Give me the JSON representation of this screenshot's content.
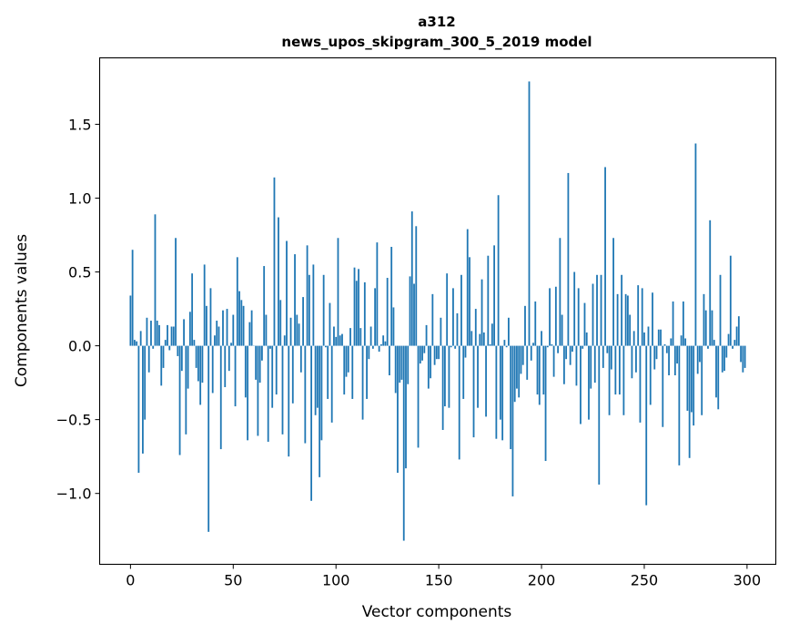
{
  "chart_data": {
    "type": "bar",
    "title": "a312",
    "subtitle": "news_upos_skipgram_300_5_2019 model",
    "xlabel": "Vector components",
    "ylabel": "Components values",
    "xlim": [
      -15,
      314
    ],
    "ylim": [
      -1.48,
      1.95
    ],
    "grid": false,
    "bar_color": "#1f77b4",
    "xticks": [
      0,
      50,
      100,
      150,
      200,
      250,
      300
    ],
    "xtick_labels": [
      "0",
      "50",
      "100",
      "150",
      "200",
      "250",
      "300"
    ],
    "yticks": [
      -1.0,
      -0.5,
      0.0,
      0.5,
      1.0,
      1.5
    ],
    "ytick_labels": [
      "−1.0",
      "−0.5",
      "0.0",
      "0.5",
      "1.0",
      "1.5"
    ],
    "values": [
      0.34,
      0.65,
      0.04,
      0.03,
      -0.86,
      0.1,
      -0.73,
      -0.5,
      0.19,
      -0.18,
      0.17,
      -0.02,
      0.89,
      0.17,
      0.14,
      -0.27,
      -0.15,
      0.04,
      0.14,
      -0.03,
      0.13,
      0.13,
      0.73,
      -0.07,
      -0.74,
      -0.17,
      0.18,
      -0.6,
      -0.29,
      0.23,
      0.49,
      0.04,
      -0.15,
      -0.24,
      -0.4,
      -0.25,
      0.55,
      0.27,
      -1.26,
      0.39,
      -0.32,
      0.07,
      0.17,
      0.13,
      -0.7,
      0.24,
      -0.28,
      0.25,
      -0.17,
      0.02,
      0.21,
      -0.41,
      0.6,
      0.37,
      0.31,
      0.27,
      -0.35,
      -0.64,
      0.16,
      0.24,
      0.0,
      -0.23,
      -0.61,
      -0.25,
      -0.1,
      0.54,
      0.21,
      -0.65,
      -0.02,
      -0.42,
      1.14,
      -0.33,
      0.87,
      0.31,
      -0.6,
      0.07,
      0.71,
      -0.75,
      0.19,
      -0.39,
      0.62,
      0.21,
      0.15,
      -0.18,
      0.33,
      -0.66,
      0.68,
      0.48,
      -1.05,
      0.55,
      -0.47,
      -0.42,
      -0.89,
      -0.64,
      0.48,
      -0.01,
      -0.36,
      0.29,
      -0.52,
      0.13,
      0.06,
      0.73,
      0.07,
      0.08,
      -0.33,
      -0.21,
      -0.18,
      0.12,
      -0.36,
      0.53,
      0.44,
      0.52,
      0.12,
      -0.5,
      0.43,
      -0.36,
      -0.09,
      0.13,
      -0.02,
      0.39,
      0.7,
      -0.04,
      0.01,
      0.07,
      0.03,
      0.46,
      -0.2,
      0.67,
      0.26,
      -0.32,
      -0.86,
      -0.25,
      -0.23,
      -1.32,
      -0.83,
      -0.26,
      0.47,
      0.91,
      0.42,
      0.81,
      -0.69,
      -0.12,
      -0.1,
      -0.05,
      0.14,
      -0.29,
      -0.22,
      0.35,
      -0.13,
      -0.09,
      -0.09,
      0.19,
      -0.57,
      -0.41,
      0.49,
      -0.42,
      -0.01,
      0.39,
      -0.02,
      0.22,
      -0.77,
      0.48,
      -0.36,
      -0.08,
      0.79,
      0.6,
      0.1,
      -0.62,
      0.25,
      -0.42,
      0.08,
      0.45,
      0.09,
      -0.48,
      0.61,
      0.01,
      0.15,
      0.68,
      -0.63,
      1.02,
      -0.5,
      -0.64,
      0.04,
      -0.01,
      0.19,
      -0.7,
      -1.02,
      -0.38,
      -0.29,
      -0.35,
      -0.19,
      -0.13,
      0.27,
      -0.23,
      1.79,
      -0.1,
      0.02,
      0.3,
      -0.33,
      -0.4,
      0.1,
      -0.33,
      -0.78,
      -0.01,
      0.39,
      0.01,
      -0.21,
      0.4,
      -0.05,
      0.73,
      0.21,
      -0.26,
      -0.09,
      1.17,
      -0.13,
      -0.04,
      0.5,
      -0.27,
      0.39,
      -0.53,
      -0.02,
      0.29,
      0.09,
      -0.5,
      -0.29,
      0.42,
      -0.25,
      0.48,
      -0.94,
      0.48,
      -0.15,
      1.21,
      -0.05,
      -0.47,
      -0.16,
      0.73,
      -0.33,
      0.35,
      -0.33,
      0.48,
      -0.47,
      0.35,
      0.34,
      0.21,
      -0.22,
      0.1,
      -0.18,
      0.41,
      -0.52,
      0.39,
      0.09,
      -1.08,
      0.13,
      -0.4,
      0.36,
      -0.16,
      -0.09,
      0.11,
      0.11,
      -0.55,
      0.01,
      -0.05,
      -0.2,
      0.05,
      0.3,
      -0.2,
      -0.12,
      -0.81,
      0.07,
      0.3,
      0.05,
      -0.44,
      -0.76,
      -0.45,
      -0.54,
      1.37,
      -0.19,
      -0.11,
      -0.47,
      0.35,
      0.24,
      -0.02,
      0.85,
      0.24,
      0.04,
      -0.35,
      -0.43,
      0.48,
      -0.18,
      -0.17,
      -0.08,
      0.08,
      0.61,
      -0.02,
      0.04,
      0.13,
      0.2,
      -0.11,
      -0.18,
      -0.15
    ]
  }
}
